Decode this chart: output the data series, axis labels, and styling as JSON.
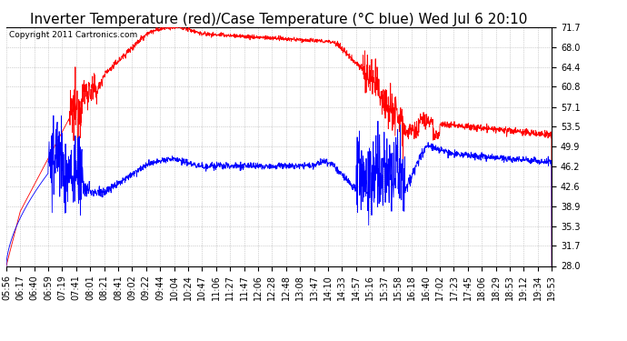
{
  "title": "Inverter Temperature (red)/Case Temperature (°C blue) Wed Jul 6 20:10",
  "copyright": "Copyright 2011 Cartronics.com",
  "ylabel_right_ticks": [
    28.0,
    31.7,
    35.3,
    38.9,
    42.6,
    46.2,
    49.9,
    53.5,
    57.1,
    60.8,
    64.4,
    68.0,
    71.7
  ],
  "ymin": 28.0,
  "ymax": 71.7,
  "xtick_labels": [
    "05:56",
    "06:17",
    "06:40",
    "06:59",
    "07:19",
    "07:41",
    "08:01",
    "08:21",
    "08:41",
    "09:02",
    "09:22",
    "09:44",
    "10:04",
    "10:24",
    "10:47",
    "11:06",
    "11:27",
    "11:47",
    "12:06",
    "12:28",
    "12:48",
    "13:08",
    "13:47",
    "14:10",
    "14:33",
    "14:57",
    "15:16",
    "15:37",
    "15:58",
    "16:18",
    "16:40",
    "17:02",
    "17:23",
    "17:45",
    "18:06",
    "18:29",
    "18:53",
    "19:12",
    "19:34",
    "19:53"
  ],
  "background_color": "#ffffff",
  "plot_bg_color": "#ffffff",
  "grid_color": "#aaaaaa",
  "red_line_color": "#ff0000",
  "blue_line_color": "#0000ff",
  "title_fontsize": 11,
  "tick_fontsize": 7,
  "n_points": 2000
}
